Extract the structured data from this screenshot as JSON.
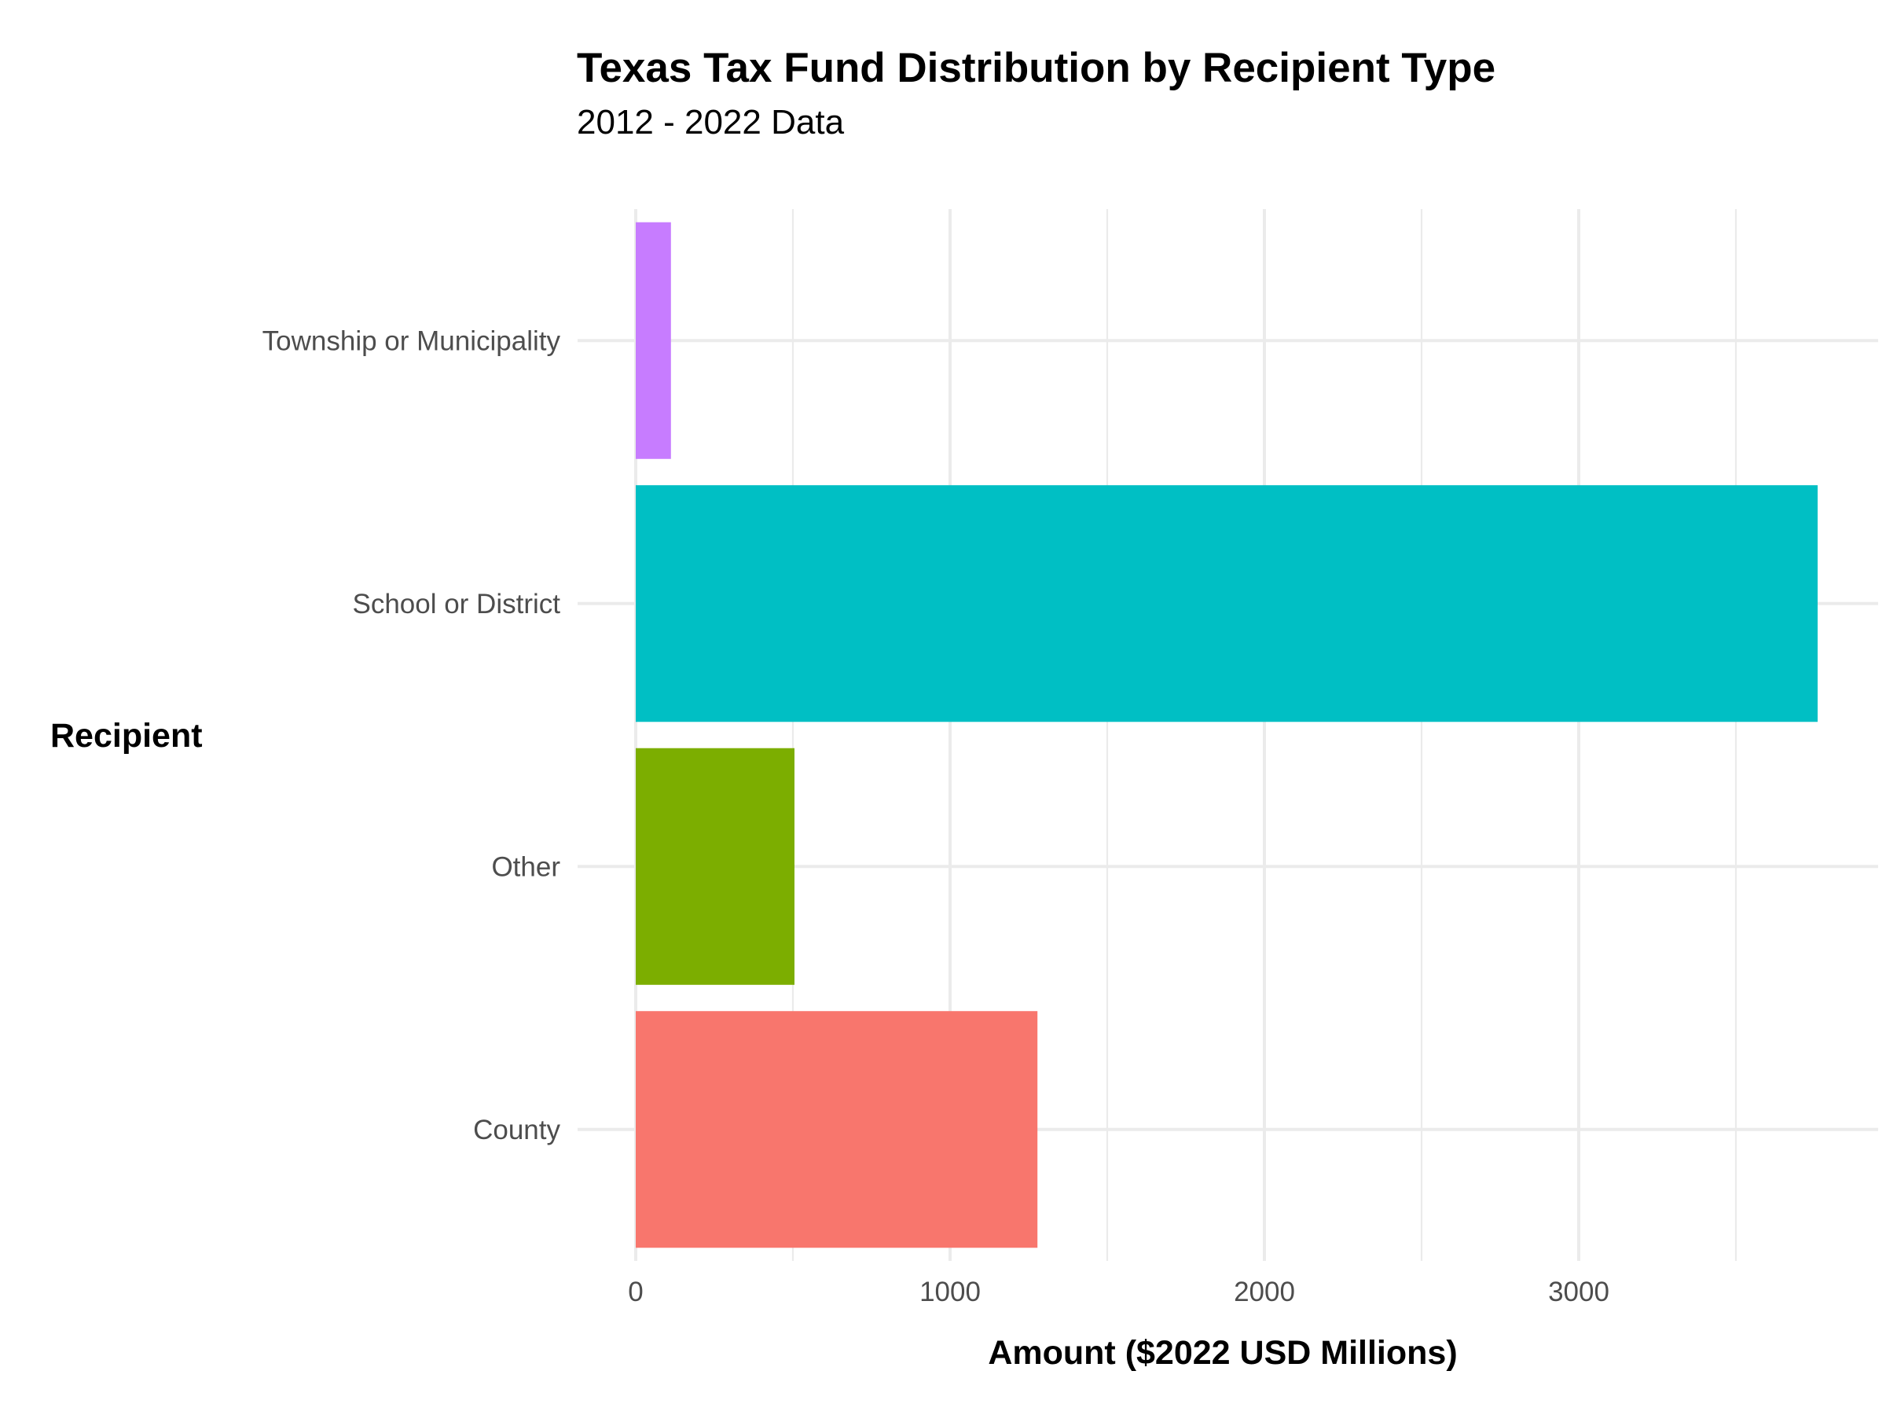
{
  "chart_data": {
    "type": "bar",
    "orientation": "horizontal",
    "title": "Texas Tax Fund Distribution by Recipient Type",
    "subtitle": "2012 - 2022 Data",
    "xlabel": "Amount ($2022 USD Millions)",
    "ylabel": "Recipient",
    "categories": [
      "County",
      "Other",
      "School or District",
      "Township or Municipality"
    ],
    "values": [
      1278,
      505,
      3760,
      112
    ],
    "colors": [
      "#F8766D",
      "#7CAE00",
      "#00BFC4",
      "#C77CFF"
    ],
    "xlim": [
      0,
      3950
    ],
    "xticks": [
      0,
      1000,
      2000,
      3000
    ],
    "xtick_labels": [
      "0",
      "1000",
      "2000",
      "3000"
    ],
    "grid": true,
    "legend": "none"
  }
}
